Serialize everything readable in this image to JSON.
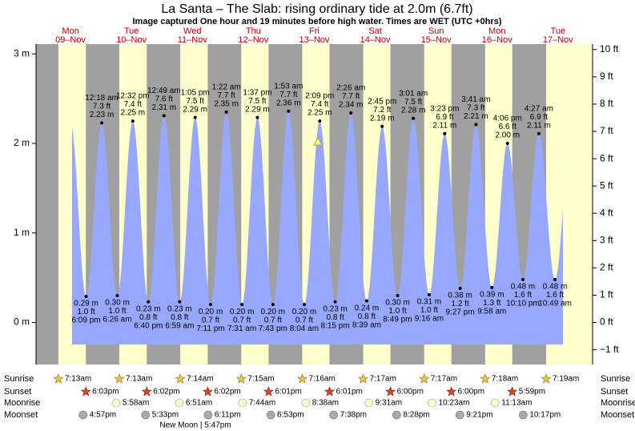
{
  "chart_data": {
    "type": "area",
    "title": "La Santa – The Slab: rising  ordinary tide at 2.0m (6.7ft)",
    "subtitle": "Image captured One hour and 19 minutes before high water. Times are WET (UTC +0hrs)",
    "days": [
      "Mon",
      "Tue",
      "Wed",
      "Thu",
      "Fri",
      "Sat",
      "Sun",
      "Mon",
      "Tue"
    ],
    "dates": [
      "09–Nov",
      "10–Nov",
      "11–Nov",
      "12–Nov",
      "13–Nov",
      "14–Nov",
      "15–Nov",
      "16–Nov",
      "17–Nov"
    ],
    "x": [
      "6:09 pm",
      "12:18 am",
      "6:26 am",
      "12:32 pm",
      "6:40 pm",
      "12:49 am",
      "6:59 am",
      "1:05 pm",
      "7:11 pm",
      "1:22 am",
      "7:31 am",
      "1:37 pm",
      "7:43 pm",
      "1:53 am",
      "8:04 am",
      "2:09 pm",
      "8:15 pm",
      "2:26 am",
      "8:39 am",
      "2:45 pm",
      "8:49 pm",
      "3:01 am",
      "9:16 am",
      "3:23 pm",
      "9:27 pm",
      "3:41 am",
      "9:58 am",
      "4:06 pm",
      "10:10 pm",
      "4:27 am",
      "10:49 am"
    ],
    "values": [
      0.29,
      2.23,
      0.3,
      2.25,
      0.23,
      2.31,
      0.23,
      2.29,
      0.2,
      2.35,
      0.2,
      2.29,
      0.2,
      2.36,
      0.2,
      2.25,
      0.23,
      2.34,
      0.24,
      2.19,
      0.3,
      2.28,
      0.31,
      2.11,
      0.38,
      2.21,
      0.39,
      2.0,
      0.48,
      2.11,
      0.48
    ],
    "value_labels": [
      "0.29 m",
      "2.23 m",
      "0.30 m",
      "2.25 m",
      "0.23 m",
      "2.31 m",
      "0.23 m",
      "2.29 m",
      "0.20 m",
      "2.35 m",
      "0.20 m",
      "2.29 m",
      "0.20 m",
      "2.36 m",
      "0.20 m",
      "2.25 m",
      "0.23 m",
      "2.34 m",
      "0.24 m",
      "2.19 m",
      "0.30 m",
      "2.28 m",
      "0.31 m",
      "2.11 m",
      "0.38 m",
      "2.21 m",
      "0.39 m",
      "2.00 m",
      "0.48 m",
      "2.11 m",
      "0.48 m"
    ],
    "ft_labels": [
      "1.0 ft",
      "7.3 ft",
      "1.0 ft",
      "7.4 ft",
      "0.8 ft",
      "7.6 ft",
      "0.8 ft",
      "7.5 ft",
      "0.7 ft",
      "7.7 ft",
      "0.7 ft",
      "7.5 ft",
      "0.7 ft",
      "7.7 ft",
      "0.7 ft",
      "7.4 ft",
      "0.8 ft",
      "7.7 ft",
      "0.8 ft",
      "7.2 ft",
      "1.0 ft",
      "7.5 ft",
      "1.0 ft",
      "6.9 ft",
      "1.2 ft",
      "7.3 ft",
      "1.3 ft",
      "6.6 ft",
      "1.6 ft",
      "6.9 ft",
      "1.6 ft"
    ],
    "color": "#99a8ff",
    "ylim": [
      -0.47,
      3.11
    ],
    "yticks": [
      {
        "value": 3,
        "label": "3 m"
      },
      {
        "value": 2,
        "label": "2 m"
      },
      {
        "value": 1,
        "label": "1 m"
      },
      {
        "value": 0,
        "label": "0 m"
      }
    ],
    "y2lim": [
      -1.54,
      10.2
    ],
    "y2ticks": [
      {
        "value": 10,
        "label": "10 ft"
      },
      {
        "value": 9,
        "label": "9 ft"
      },
      {
        "value": 8,
        "label": "8 ft"
      },
      {
        "value": 7,
        "label": "7 ft"
      },
      {
        "value": 6,
        "label": "6 ft"
      },
      {
        "value": 5,
        "label": "5 ft"
      },
      {
        "value": 4,
        "label": "4 ft"
      },
      {
        "value": 3,
        "label": "3 ft"
      },
      {
        "value": 2,
        "label": "2 ft"
      },
      {
        "value": 1,
        "label": "1 ft"
      },
      {
        "value": 0,
        "label": "0 ft"
      },
      {
        "value": -1,
        "label": "−1 ft"
      }
    ],
    "row_labels": [
      "Sunrise",
      "Sunset",
      "Moonrise",
      "Moonset"
    ],
    "sunrise": [
      "7:13am",
      "7:13am",
      "7:14am",
      "7:15am",
      "7:16am",
      "7:17am",
      "7:17am",
      "7:18am",
      "7:19am"
    ],
    "sunset": [
      "6:03pm",
      "6:02pm",
      "6:02pm",
      "6:01pm",
      "6:01pm",
      "6:00pm",
      "6:00pm",
      "5:59pm"
    ],
    "moonrise": [
      "5:58am",
      "6:51am",
      "7:44am",
      "8:38am",
      "9:31am",
      "10:23am",
      "11:13am"
    ],
    "moonset": [
      "4:57pm",
      "5:33pm",
      "6:11pm",
      "6:53pm",
      "7:38pm",
      "8:28pm",
      "9:21pm",
      "10:17pm"
    ],
    "moon_phase": "New Moon | 5:47pm"
  }
}
